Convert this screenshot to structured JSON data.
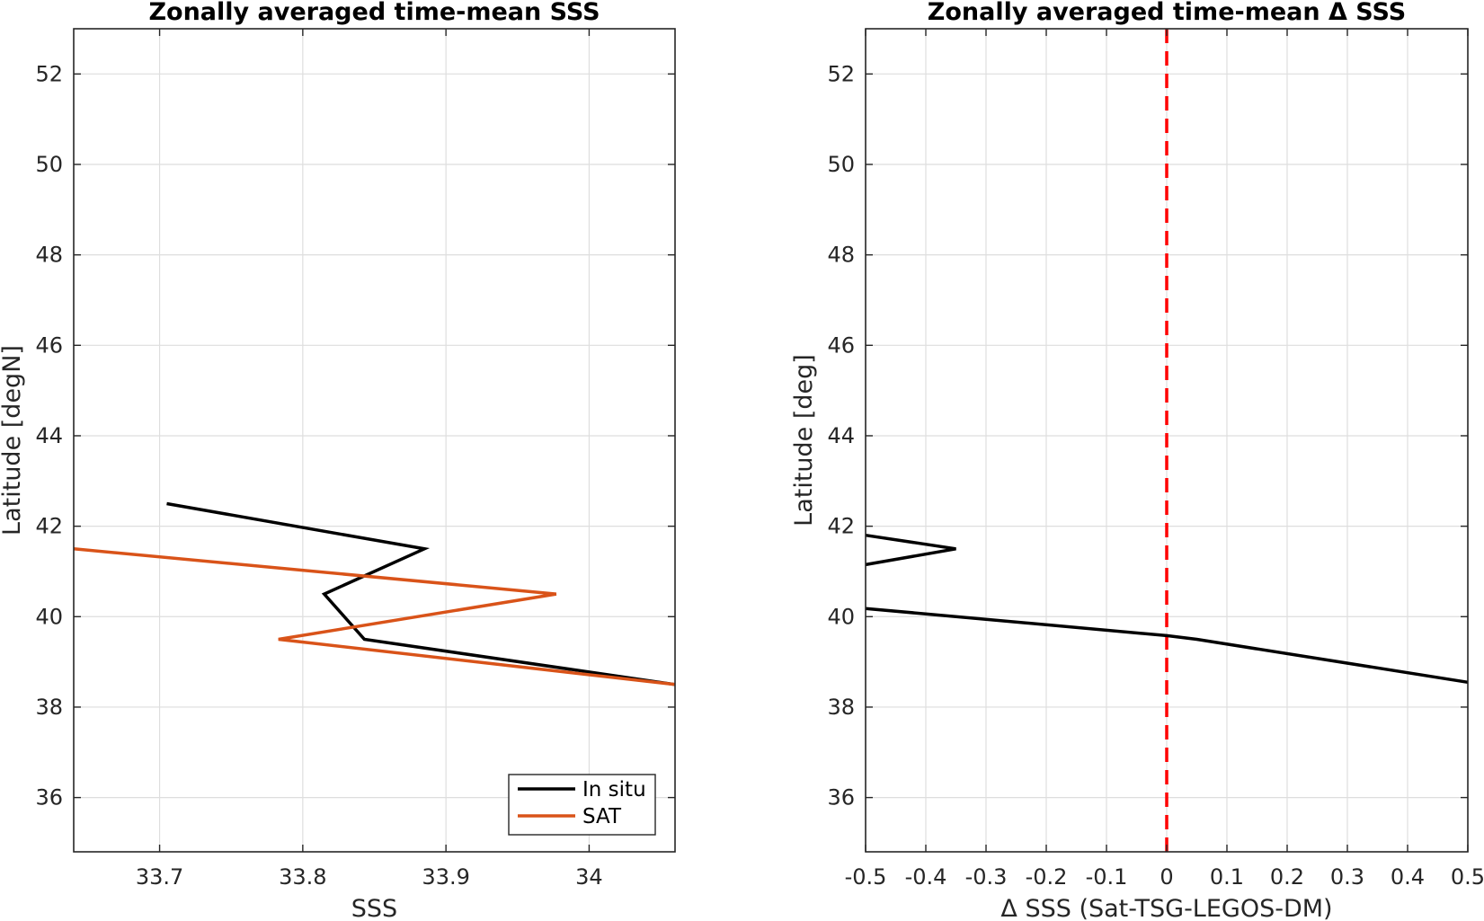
{
  "chart_data": [
    {
      "type": "line",
      "title": "Zonally averaged time-mean SSS",
      "xlabel": "SSS",
      "ylabel": "Latitude [degN]",
      "xlim": [
        33.64,
        34.06
      ],
      "ylim": [
        34.8,
        53.0
      ],
      "xticks": [
        33.7,
        33.8,
        33.9,
        34.0
      ],
      "xtick_labels": [
        "33.7",
        "33.8",
        "33.9",
        "34"
      ],
      "yticks": [
        36,
        38,
        40,
        42,
        44,
        46,
        48,
        50,
        52
      ],
      "ytick_labels": [
        "36",
        "38",
        "40",
        "42",
        "44",
        "46",
        "48",
        "50",
        "52"
      ],
      "grid": true,
      "legend": {
        "placement": "bottom-right",
        "entries": [
          "In situ",
          "SAT"
        ]
      },
      "series": [
        {
          "name": "In situ",
          "color": "#000000",
          "x": [
            33.705,
            33.885,
            33.815,
            33.843,
            34.06
          ],
          "y": [
            42.5,
            41.5,
            40.5,
            39.5,
            38.5
          ]
        },
        {
          "name": "SAT",
          "color": "#d95319",
          "x": [
            33.64,
            33.977,
            33.783,
            34.06
          ],
          "y": [
            41.5,
            40.5,
            39.5,
            38.5
          ]
        }
      ]
    },
    {
      "type": "line",
      "title": "Zonally averaged time-mean Δ SSS",
      "xlabel": "Δ SSS (Sat-TSG-LEGOS-DM)",
      "ylabel": "Latitude [deg]",
      "xlim": [
        -0.5,
        0.5
      ],
      "ylim": [
        34.8,
        53.0
      ],
      "xticks": [
        -0.5,
        -0.4,
        -0.3,
        -0.2,
        -0.1,
        0,
        0.1,
        0.2,
        0.3,
        0.4,
        0.5
      ],
      "xtick_labels": [
        "-0.5",
        "-0.4",
        "-0.3",
        "-0.2",
        "-0.1",
        "0",
        "0.1",
        "0.2",
        "0.3",
        "0.4",
        "0.5"
      ],
      "yticks": [
        36,
        38,
        40,
        42,
        44,
        46,
        48,
        50,
        52
      ],
      "ytick_labels": [
        "36",
        "38",
        "40",
        "42",
        "44",
        "46",
        "48",
        "50",
        "52"
      ],
      "grid": true,
      "reference_line": {
        "x": 0,
        "color": "#ff0000",
        "style": "dashed"
      },
      "series": [
        {
          "color": "#000000",
          "x": [
            -0.5,
            -0.35,
            -0.5
          ],
          "y": [
            41.8,
            41.5,
            41.15
          ]
        },
        {
          "color": "#000000",
          "x": [
            -0.5,
            0.0,
            0.05,
            0.5
          ],
          "y": [
            40.18,
            39.58,
            39.5,
            38.55
          ]
        }
      ]
    }
  ]
}
